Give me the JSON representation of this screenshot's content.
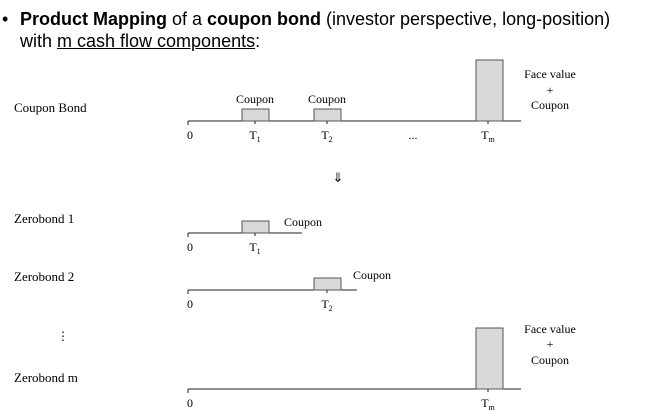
{
  "heading": {
    "bullet": "•",
    "part1_bold": "Product Mapping",
    "part2": " of a ",
    "part3_bold": "coupon bond",
    "part4": " (investor perspective, long-position)",
    "line2_prefix": "with ",
    "line2_underlined": "m cash flow components",
    "line2_suffix": ":"
  },
  "rows": [
    {
      "label": "Coupon Bond",
      "zero": "0",
      "ellipsis": "...",
      "ticks": [
        {
          "base": "T",
          "sub": "1"
        },
        {
          "base": "T",
          "sub": "2"
        },
        {
          "base": "T",
          "sub": "m"
        }
      ],
      "bars": [
        {
          "kind": "coupon",
          "label": "Coupon"
        },
        {
          "kind": "coupon",
          "label": "Coupon"
        },
        {
          "kind": "face",
          "label_lines": [
            "Face value",
            "+",
            "Coupon"
          ]
        }
      ]
    },
    {
      "label": "Zerobond 1",
      "zero": "0",
      "ticks": [
        {
          "base": "T",
          "sub": "1"
        }
      ],
      "bars": [
        {
          "kind": "coupon",
          "label": "Coupon"
        }
      ]
    },
    {
      "label": "Zerobond 2",
      "zero": "0",
      "ticks": [
        {
          "base": "T",
          "sub": "2"
        }
      ],
      "bars": [
        {
          "kind": "coupon",
          "label": "Coupon"
        }
      ]
    },
    {
      "label": "Zerobond m",
      "zero": "0",
      "ticks": [
        {
          "base": "T",
          "sub": "m"
        }
      ],
      "bars": [
        {
          "kind": "face",
          "label_lines": [
            "Face value",
            "+",
            "Coupon"
          ]
        }
      ]
    }
  ],
  "arrow": "⇓",
  "vertical_ellipsis": "⋮",
  "colors": {
    "bar_fill": "#d9d9d9",
    "bar_stroke": "#555555",
    "axis": "#222222",
    "text": "#000000"
  }
}
